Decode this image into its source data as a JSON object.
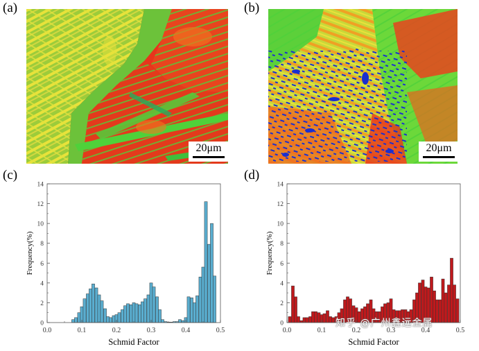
{
  "figure": {
    "panels": [
      {
        "label": "(a)",
        "type": "ebsd-map",
        "scale_bar": "20μm"
      },
      {
        "label": "(b)",
        "type": "ebsd-map",
        "scale_bar": "20μm"
      },
      {
        "label": "(c)",
        "type": "histogram"
      },
      {
        "label": "(d)",
        "type": "histogram"
      }
    ],
    "watermark": "知乎 @广州鑫远金属"
  },
  "colors": {
    "hist_c": "#5aaed0",
    "hist_d": "#c0191c",
    "map_red": "#e8341c",
    "map_yellow": "#e8e23a",
    "map_green": "#4fd13a",
    "map_blue": "#1a2fd0",
    "map_orange": "#f08a1e"
  },
  "chart_data": [
    {
      "type": "bar",
      "panel": "(c)",
      "xlabel": "Schmid Factor",
      "ylabel": "Frequency(%)",
      "xlim": [
        0.0,
        0.5
      ],
      "ylim": [
        0,
        14
      ],
      "xticks": [
        "0.0",
        "0.1",
        "0.2",
        "0.3",
        "0.4",
        "0.5"
      ],
      "yticks": [
        "0",
        "2",
        "4",
        "6",
        "8",
        "10",
        "12",
        "14"
      ],
      "bin_width": 0.0083,
      "x": [
        0.075,
        0.083,
        0.092,
        0.1,
        0.108,
        0.117,
        0.125,
        0.133,
        0.142,
        0.15,
        0.158,
        0.167,
        0.175,
        0.183,
        0.192,
        0.2,
        0.208,
        0.217,
        0.225,
        0.233,
        0.242,
        0.25,
        0.258,
        0.267,
        0.275,
        0.283,
        0.292,
        0.3,
        0.308,
        0.317,
        0.325,
        0.333,
        0.342,
        0.35,
        0.358,
        0.367,
        0.375,
        0.383,
        0.392,
        0.4,
        0.408,
        0.417,
        0.425,
        0.433,
        0.442,
        0.45,
        0.458,
        0.467,
        0.475,
        0.483
      ],
      "values": [
        0.3,
        0.5,
        1.0,
        1.6,
        2.4,
        2.9,
        3.4,
        3.9,
        3.5,
        2.8,
        2.2,
        1.4,
        0.6,
        0.5,
        0.7,
        0.8,
        1.0,
        1.3,
        1.7,
        1.9,
        1.8,
        2.0,
        1.9,
        1.8,
        2.1,
        2.4,
        2.8,
        4.0,
        3.6,
        2.6,
        1.3,
        0.3,
        0.1,
        0.05,
        0.05,
        0.1,
        0.1,
        0.3,
        0.2,
        0.5,
        2.6,
        2.5,
        2.0,
        2.7,
        4.6,
        5.6,
        12.2,
        7.9,
        10.0,
        4.7
      ]
    },
    {
      "type": "bar",
      "panel": "(d)",
      "xlabel": "Schmid Factor",
      "ylabel": "Frequency(%)",
      "xlim": [
        0.0,
        0.5
      ],
      "ylim": [
        0,
        14
      ],
      "xticks": [
        "0.0",
        "0.1",
        "0.2",
        "0.3",
        "0.4",
        "0.5"
      ],
      "yticks": [
        "0",
        "2",
        "4",
        "6",
        "8",
        "10",
        "12",
        "14"
      ],
      "bin_width": 0.0083,
      "x": [
        0.008,
        0.017,
        0.025,
        0.033,
        0.042,
        0.05,
        0.058,
        0.067,
        0.075,
        0.083,
        0.092,
        0.1,
        0.108,
        0.117,
        0.125,
        0.133,
        0.142,
        0.15,
        0.158,
        0.167,
        0.175,
        0.183,
        0.192,
        0.2,
        0.208,
        0.217,
        0.225,
        0.233,
        0.242,
        0.25,
        0.258,
        0.267,
        0.275,
        0.283,
        0.292,
        0.3,
        0.308,
        0.317,
        0.325,
        0.333,
        0.342,
        0.35,
        0.358,
        0.367,
        0.375,
        0.383,
        0.392,
        0.4,
        0.408,
        0.417,
        0.425,
        0.433,
        0.442,
        0.45,
        0.458,
        0.467,
        0.475,
        0.483,
        0.492
      ],
      "values": [
        0.6,
        3.7,
        2.6,
        0.6,
        0.2,
        0.5,
        0.5,
        0.6,
        1.1,
        1.1,
        1.0,
        0.8,
        0.9,
        1.2,
        0.6,
        0.5,
        0.6,
        1.0,
        1.4,
        2.3,
        2.6,
        2.4,
        1.7,
        1.5,
        1.1,
        1.4,
        1.6,
        1.9,
        2.3,
        1.4,
        1.1,
        1.1,
        1.6,
        1.9,
        2.0,
        2.4,
        1.3,
        1.2,
        1.2,
        1.3,
        1.3,
        1.1,
        1.3,
        2.3,
        3.0,
        4.0,
        4.3,
        3.6,
        3.5,
        4.6,
        3.2,
        2.3,
        2.3,
        4.4,
        3.0,
        3.8,
        6.5,
        3.8,
        2.4
      ]
    }
  ]
}
